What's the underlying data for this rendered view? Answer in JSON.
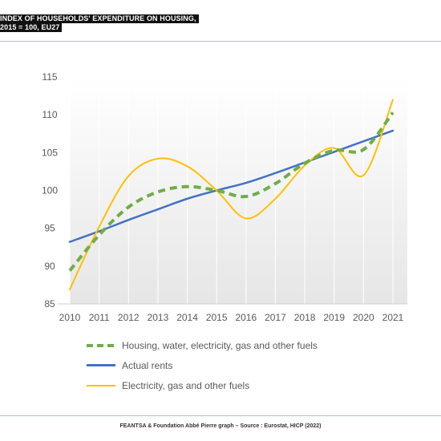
{
  "header": {
    "title_line1": "INDEX OF HOUSEHOLDS' EXPENDITURE ON HOUSING,",
    "title_line2": "2015 = 100, EU27"
  },
  "footer": {
    "source": "FEANTSA & Foundation Abbé Pierre graph – Source : Eurostat, HICP (2022)"
  },
  "chart_data": {
    "type": "line",
    "title": "INDEX OF HOUSEHOLDS' EXPENDITURE ON HOUSING, 2015 = 100, EU27",
    "x": [
      "2010",
      "2011",
      "2012",
      "2013",
      "2014",
      "2015",
      "2016",
      "2017",
      "2018",
      "2019",
      "2020",
      "2021"
    ],
    "ylim": [
      85,
      115
    ],
    "yticks": [
      85,
      90,
      95,
      100,
      105,
      110,
      115
    ],
    "grid": "vertical",
    "legend_position": "bottom",
    "series": [
      {
        "name": "Housing, water, electricity, gas and other fuels",
        "color": "#70ad47",
        "style": "dashed",
        "values": [
          89.4,
          94.1,
          97.8,
          99.8,
          100.5,
          100.0,
          99.2,
          100.9,
          103.6,
          105.3,
          105.4,
          110.3
        ]
      },
      {
        "name": "Actual rents",
        "color": "#4472c4",
        "style": "solid",
        "values": [
          93.2,
          94.6,
          96.1,
          97.5,
          98.9,
          100.0,
          101.0,
          102.3,
          103.7,
          105.1,
          106.5,
          107.9
        ]
      },
      {
        "name": "Electricity, gas and other fuels",
        "color": "#ffc000",
        "style": "solid",
        "values": [
          86.9,
          95.2,
          101.9,
          104.2,
          103.2,
          100.0,
          96.3,
          98.9,
          103.3,
          105.6,
          102.0,
          112.0
        ]
      }
    ]
  }
}
